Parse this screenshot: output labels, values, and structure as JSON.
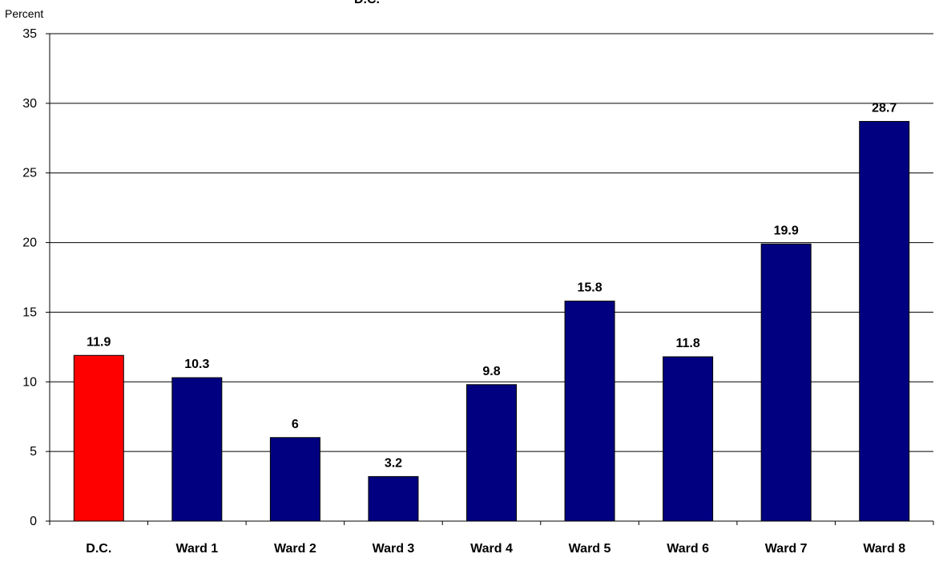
{
  "chart_data": {
    "type": "bar",
    "title": "D.C.",
    "ylabel": "Percent",
    "xlabel": "",
    "categories": [
      "D.C.",
      "Ward 1",
      "Ward 2",
      "Ward 3",
      "Ward 4",
      "Ward 5",
      "Ward 6",
      "Ward 7",
      "Ward 8"
    ],
    "values": [
      11.9,
      10.3,
      6,
      3.2,
      9.8,
      15.8,
      11.8,
      19.9,
      28.7
    ],
    "data_labels": [
      "11.9",
      "10.3",
      "6",
      "3.2",
      "9.8",
      "15.8",
      "11.8",
      "19.9",
      "28.7"
    ],
    "ylim": [
      0,
      35
    ],
    "yticks": [
      0,
      5,
      10,
      15,
      20,
      25,
      30,
      35
    ],
    "grid": true,
    "legend": "none",
    "colors": {
      "highlight": "#ff0000",
      "bar": "#000080",
      "outline": "#000000",
      "grid": "#000000"
    },
    "highlight_index": 0
  }
}
